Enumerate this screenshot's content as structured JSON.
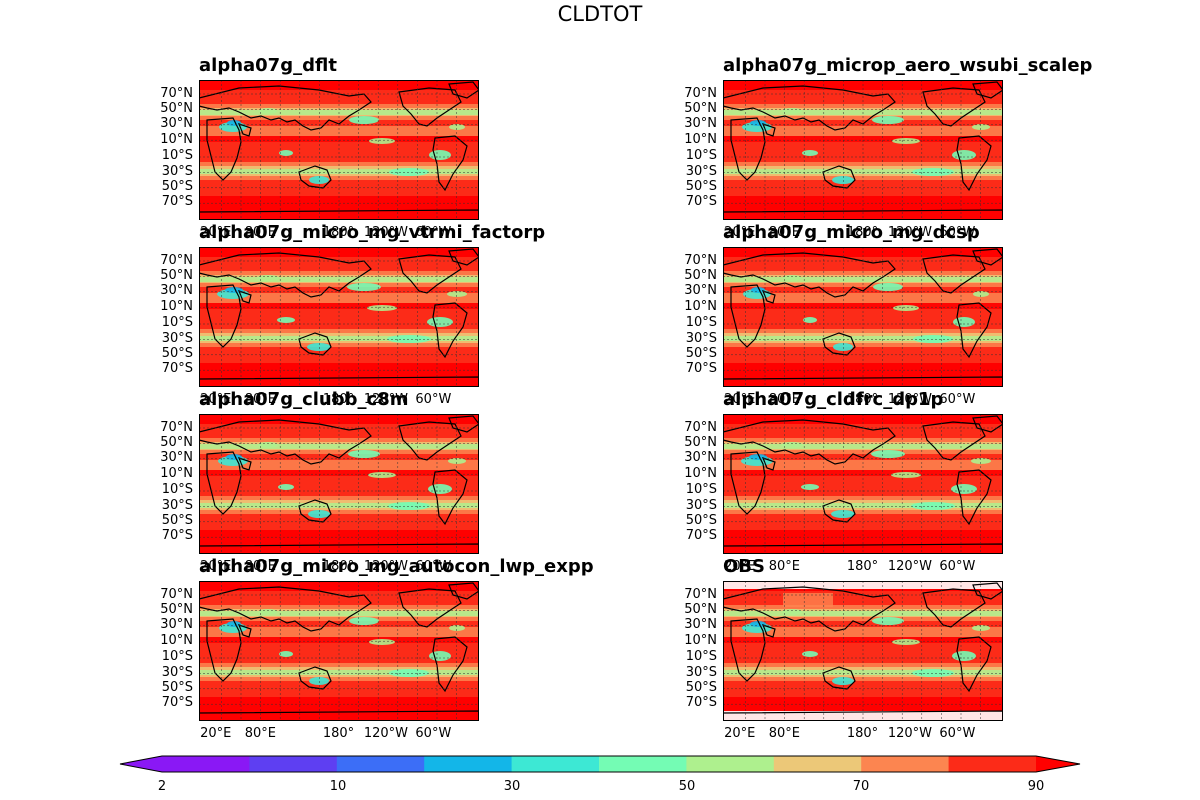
{
  "chart_data": {
    "type": "map_panels",
    "title": "CLDTOT",
    "panels": [
      {
        "name": "alpha07g_dflt"
      },
      {
        "name": "alpha07g_microp_aero_wsubi_scalep"
      },
      {
        "name": "alpha07g_micro_mg_vtrmi_factorp"
      },
      {
        "name": "alpha07g_micro_mg_dcsp"
      },
      {
        "name": "alpha07g_clubb_c8m"
      },
      {
        "name": "alpha07g_cldfrc_dp1p"
      },
      {
        "name": "alpha07g_micro_mg_autocon_lwp_expp"
      },
      {
        "name": "OBS"
      }
    ],
    "lat_ticks": [
      "70°N",
      "50°N",
      "30°N",
      "10°N",
      "10°S",
      "30°S",
      "50°S",
      "70°S"
    ],
    "lon_ticks": [
      "20°E",
      "80°E",
      "180°",
      "120°W",
      "60°W"
    ],
    "colorbar": {
      "levels": [
        2,
        10,
        20,
        30,
        40,
        50,
        60,
        70,
        80,
        90
      ],
      "tick_labels": [
        "2",
        "10",
        "30",
        "50",
        "70",
        "90"
      ],
      "colors": [
        "#8a18f5",
        "#5e3ff2",
        "#3c6ef7",
        "#13b6e8",
        "#3de8d4",
        "#74fcb4",
        "#aef08e",
        "#ecc878",
        "#fc8550",
        "#fc2b18",
        "#ff0000"
      ],
      "extend": "both"
    }
  }
}
